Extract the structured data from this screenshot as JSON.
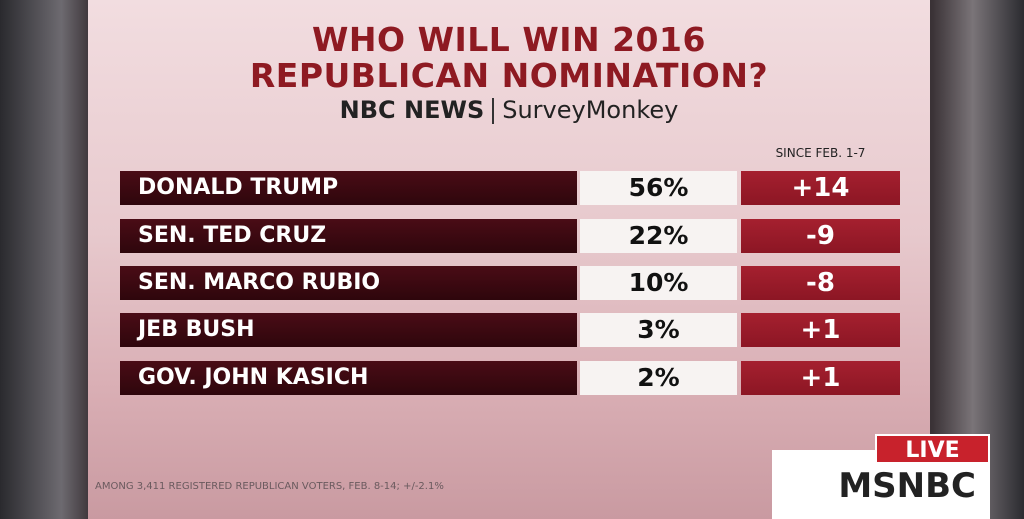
{
  "header": {
    "title_lines": [
      "WHO WILL WIN 2016",
      "REPUBLICAN NOMINATION?"
    ],
    "logos": [
      "NBC NEWS",
      "SurveyMonkey"
    ]
  },
  "table": {
    "change_header": "SINCE FEB. 1-7",
    "rows": [
      [
        "DONALD TRUMP",
        "56%",
        "+14"
      ],
      [
        "SEN. TED CRUZ",
        "22%",
        "-9"
      ],
      [
        "SEN. MARCO RUBIO",
        "10%",
        "-8"
      ],
      [
        "JEB BUSH",
        "3%",
        "+1"
      ],
      [
        "GOV. JOHN KASICH",
        "2%",
        "+1"
      ]
    ]
  },
  "footer": {
    "note": "AMONG 3,411 REGISTERED REPUBLICAN VOTERS, FEB. 8-14; +/-2.1%"
  },
  "bug": {
    "live": "LIVE",
    "network": "MSNBC"
  }
}
